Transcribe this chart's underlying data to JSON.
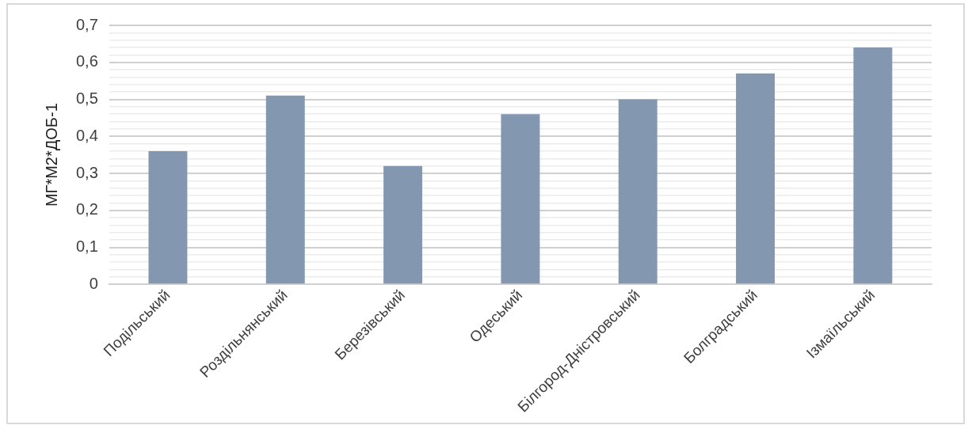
{
  "chart_data": {
    "type": "bar",
    "ylabel": "МГ*М2*ДОБ-1",
    "categories": [
      "Подільський",
      "Роздільнянський",
      "Березівський",
      "Одеський",
      "Білгород-Дністровський",
      "Болградський",
      "Ізмаїльський"
    ],
    "values": [
      0.36,
      0.51,
      0.32,
      0.46,
      0.5,
      0.57,
      0.64
    ],
    "color": "#8497b0",
    "ylim": [
      0,
      0.7
    ],
    "yticks": [
      0,
      {
        "value": 0.02,
        "label": null
      },
      {
        "value": 0.04,
        "label": null
      },
      {
        "value": 0.06,
        "label": null
      },
      {
        "value": 0.08,
        "label": null
      },
      {
        "value": 0.1,
        "label": "0,1"
      },
      {
        "value": 0.12,
        "label": null
      },
      {
        "value": 0.14,
        "label": null
      },
      {
        "value": 0.16,
        "label": null
      },
      {
        "value": 0.18,
        "label": null
      },
      {
        "value": 0.2,
        "label": "0,2"
      },
      {
        "value": 0.22,
        "label": null
      },
      {
        "value": 0.24,
        "label": null
      },
      {
        "value": 0.26,
        "label": null
      },
      {
        "value": 0.28,
        "label": null
      },
      {
        "value": 0.3,
        "label": "0,3"
      },
      {
        "value": 0.32,
        "label": null
      },
      {
        "value": 0.34,
        "label": null
      },
      {
        "value": 0.36,
        "label": null
      },
      {
        "value": 0.38,
        "label": null
      },
      {
        "value": 0.4,
        "label": "0,4"
      },
      {
        "value": 0.42,
        "label": null
      },
      {
        "value": 0.44,
        "label": null
      },
      {
        "value": 0.46,
        "label": null
      },
      {
        "value": 0.48,
        "label": null
      },
      {
        "value": 0.5,
        "label": "0,5"
      },
      {
        "value": 0.52,
        "label": null
      },
      {
        "value": 0.54,
        "label": null
      },
      {
        "value": 0.56,
        "label": null
      },
      {
        "value": 0.58,
        "label": null
      },
      {
        "value": 0.6,
        "label": "0,6"
      },
      {
        "value": 0.62,
        "label": null
      },
      {
        "value": 0.64,
        "label": null
      },
      {
        "value": 0.66,
        "label": null
      },
      {
        "value": 0.68,
        "label": null
      },
      {
        "value": 0.7,
        "label": "0,7"
      }
    ],
    "grid": "y"
  }
}
